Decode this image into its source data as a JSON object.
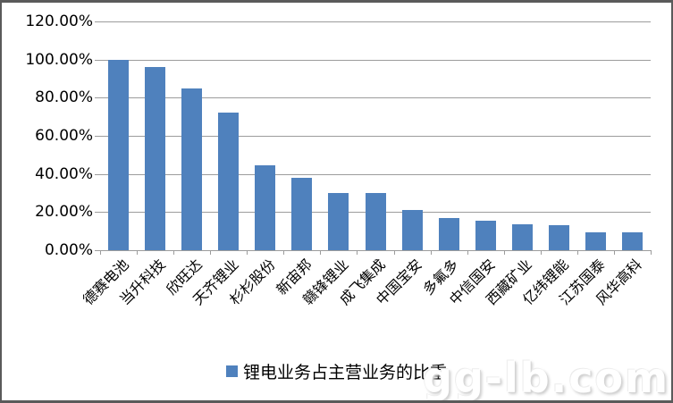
{
  "colors": {
    "bar": "#4f81bd",
    "grid": "#9c9c9c",
    "axis": "#9c9c9c",
    "frame_border": "#5a5a5a",
    "text": "#000000"
  },
  "y_axis": {
    "tick_labels_top_to_bottom": [
      "120.00%",
      "100.00%",
      "80.00%",
      "60.00%",
      "40.00%",
      "20.00%",
      "0.00%"
    ]
  },
  "legend": {
    "label": "锂电业务占主营业务的比重"
  },
  "watermark": {
    "text": "gg-lb.com"
  },
  "chart_data": {
    "type": "bar",
    "title": "",
    "xlabel": "",
    "ylabel": "",
    "categories": [
      "德赛电池",
      "当升科技",
      "欣旺达",
      "天齐锂业",
      "杉杉股份",
      "新宙邦",
      "赣锋锂业",
      "成飞集成",
      "中国宝安",
      "多氟多",
      "中信国安",
      "西藏矿业",
      "亿纬锂能",
      "江苏国泰",
      "风华高科"
    ],
    "values": [
      99.7,
      96,
      85,
      72,
      44.5,
      38,
      30,
      30,
      21,
      17,
      15.5,
      13.5,
      13,
      9.5,
      9.5
    ],
    "value_unit": "%",
    "ylim": [
      0,
      120
    ],
    "ytick_step": 20,
    "grid": true,
    "legend_entries": [
      "锂电业务占主营业务的比重"
    ],
    "legend_position": "bottom"
  }
}
